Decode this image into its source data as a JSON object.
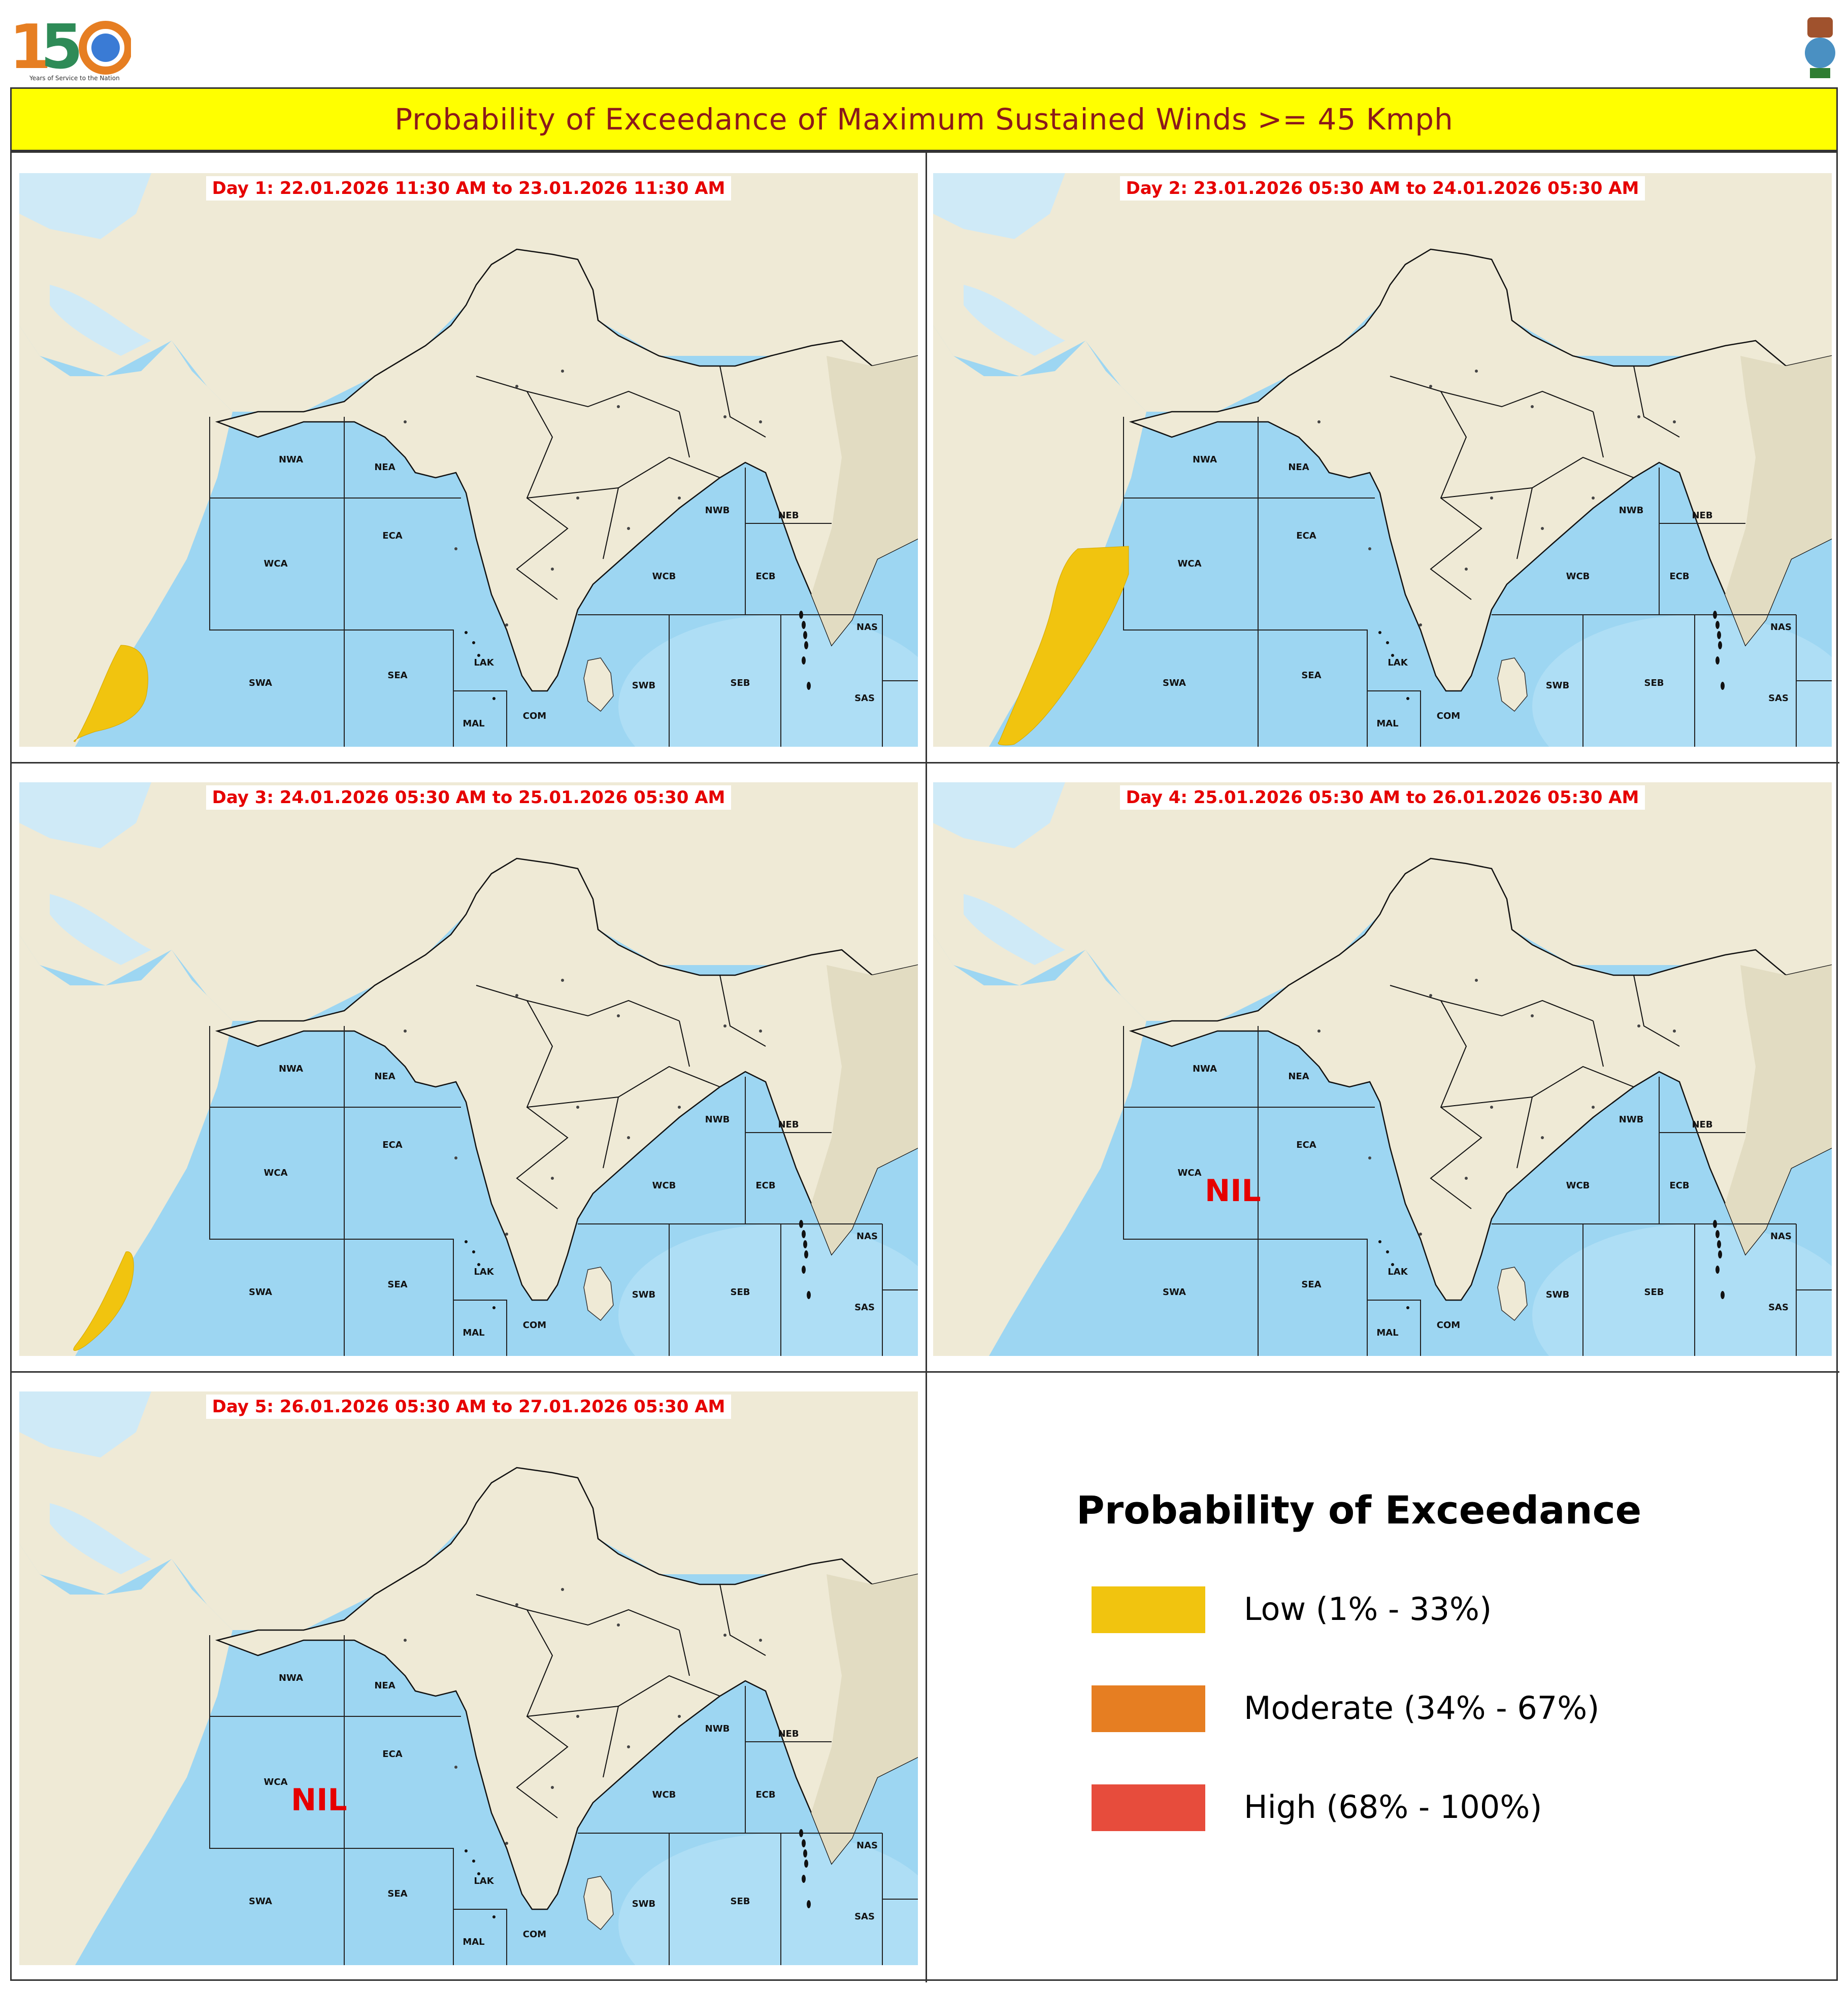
{
  "header": {
    "logo_number": "150",
    "logo_caption": "Years of Service to the Nation",
    "title": "Probability of Exceedance of Maximum Sustained Winds >= 45 Kmph"
  },
  "panels": [
    {
      "label": "Day 1: 22.01.2026 11:30 AM to 23.01.2026 11:30 AM",
      "probability": "Low",
      "nil_text": ""
    },
    {
      "label": "Day 2: 23.01.2026 05:30 AM to 24.01.2026 05:30 AM",
      "probability": "Low",
      "nil_text": ""
    },
    {
      "label": "Day 3: 24.01.2026 05:30 AM to 25.01.2026 05:30 AM",
      "probability": "Low",
      "nil_text": ""
    },
    {
      "label": "Day 4: 25.01.2026 05:30 AM to 26.01.2026 05:30 AM",
      "probability": "",
      "nil_text": "NIL"
    },
    {
      "label": "Day 5: 26.01.2026 05:30 AM to 27.01.2026 05:30 AM",
      "probability": "",
      "nil_text": "NIL"
    }
  ],
  "sea_regions": [
    "NWA",
    "NEA",
    "WCA",
    "ECA",
    "SWA",
    "SEA",
    "LAK",
    "MAL",
    "COM",
    "NWB",
    "NEB",
    "WCB",
    "ECB",
    "SWB",
    "SEB",
    "NAS",
    "SAS"
  ],
  "legend": {
    "title": "Probability of Exceedance",
    "items": [
      {
        "label": "Low (1% - 33%)",
        "color": "#f1c40f"
      },
      {
        "label": "Moderate (34% - 67%)",
        "color": "#e67e22"
      },
      {
        "label": "High (68% - 100%)",
        "color": "#e74c3c"
      }
    ]
  },
  "colors": {
    "land": "#efead6",
    "sea": "#9dd6f2",
    "title_bar": "#ffff00",
    "title_text": "#8b1a1a",
    "label_text": "#e60000"
  }
}
